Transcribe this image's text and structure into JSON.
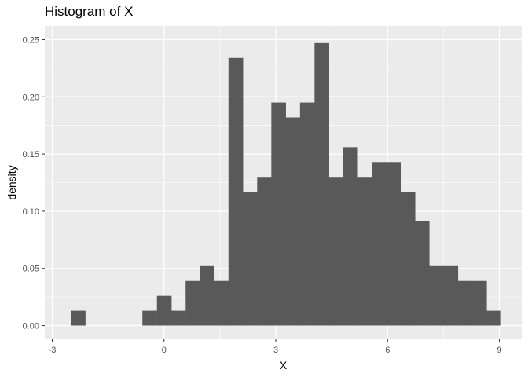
{
  "chart_data": {
    "type": "bar",
    "title": "Histogram of X",
    "xlabel": "X",
    "ylabel": "density",
    "xlim": [
      -3.2,
      9.6
    ],
    "ylim": [
      -0.012,
      0.262
    ],
    "x_ticks": [
      -3,
      0,
      3,
      6,
      9
    ],
    "x_tick_labels": [
      "-3",
      "0",
      "3",
      "6",
      "9"
    ],
    "y_ticks": [
      0.0,
      0.05,
      0.1,
      0.15,
      0.2,
      0.25
    ],
    "y_tick_labels": [
      "0.00",
      "0.05",
      "0.10",
      "0.15",
      "0.20",
      "0.25"
    ],
    "grid": true,
    "bar_color": "#595959",
    "panel_background": "#ebebeb",
    "grid_color": "#ffffff",
    "bin_width": 0.385,
    "bins": [
      {
        "x_start": -2.5,
        "density": 0.013
      },
      {
        "x_start": -0.58,
        "density": 0.013
      },
      {
        "x_start": -0.19,
        "density": 0.026
      },
      {
        "x_start": 0.19,
        "density": 0.013
      },
      {
        "x_start": 0.58,
        "density": 0.039
      },
      {
        "x_start": 0.96,
        "density": 0.052
      },
      {
        "x_start": 1.35,
        "density": 0.039
      },
      {
        "x_start": 1.73,
        "density": 0.234
      },
      {
        "x_start": 2.12,
        "density": 0.117
      },
      {
        "x_start": 2.5,
        "density": 0.13
      },
      {
        "x_start": 2.88,
        "density": 0.195
      },
      {
        "x_start": 3.27,
        "density": 0.182
      },
      {
        "x_start": 3.65,
        "density": 0.195
      },
      {
        "x_start": 4.04,
        "density": 0.247
      },
      {
        "x_start": 4.42,
        "density": 0.13
      },
      {
        "x_start": 4.81,
        "density": 0.156
      },
      {
        "x_start": 5.19,
        "density": 0.13
      },
      {
        "x_start": 5.58,
        "density": 0.143
      },
      {
        "x_start": 5.96,
        "density": 0.143
      },
      {
        "x_start": 6.35,
        "density": 0.117
      },
      {
        "x_start": 6.73,
        "density": 0.091
      },
      {
        "x_start": 7.12,
        "density": 0.052
      },
      {
        "x_start": 7.5,
        "density": 0.052
      },
      {
        "x_start": 7.88,
        "density": 0.039
      },
      {
        "x_start": 8.27,
        "density": 0.039
      },
      {
        "x_start": 8.65,
        "density": 0.013
      }
    ]
  }
}
